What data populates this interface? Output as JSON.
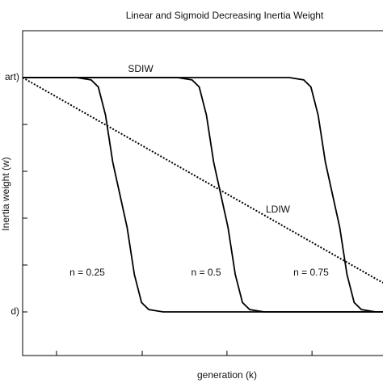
{
  "chart_data": {
    "type": "line",
    "title": "Linear and Sigmoid Decreasing Inertia Weight",
    "xlabel": "generation (k)",
    "ylabel": "Inertia weight (w)",
    "xlim": [
      0,
      100
    ],
    "ylim": [
      0,
      7
    ],
    "xticks": [
      {
        "value": 9.4,
        "label": null
      },
      {
        "value": 33.2,
        "label": null
      },
      {
        "value": 56.7,
        "label": null
      },
      {
        "value": 80.3,
        "label": null
      }
    ],
    "yticks": [
      {
        "value": 1,
        "label": "d)"
      },
      {
        "value": 2,
        "label": null
      },
      {
        "value": 3,
        "label": null
      },
      {
        "value": 4,
        "label": null
      },
      {
        "value": 5,
        "label": null
      },
      {
        "value": 6,
        "label": "art)"
      }
    ],
    "series": [
      {
        "color": "#000000",
        "style": "solid",
        "x": [
          0,
          15,
          19,
          21,
          23,
          25,
          27,
          29,
          31,
          33,
          35,
          39,
          100
        ],
        "values": [
          6,
          6,
          5.95,
          5.8,
          5.2,
          4.2,
          3.5,
          2.8,
          1.8,
          1.2,
          1.05,
          1,
          1
        ]
      },
      {
        "color": "#000000",
        "style": "solid",
        "x": [
          0,
          43,
          47,
          49,
          51,
          53,
          55,
          57,
          59,
          61,
          63,
          67,
          100
        ],
        "values": [
          6,
          6,
          5.95,
          5.8,
          5.2,
          4.2,
          3.5,
          2.8,
          1.8,
          1.2,
          1.05,
          1,
          1
        ]
      },
      {
        "color": "#000000",
        "style": "solid",
        "x": [
          0,
          74,
          78,
          80,
          82,
          84,
          86,
          88,
          90,
          92,
          94,
          98,
          100
        ],
        "values": [
          6,
          6,
          5.95,
          5.8,
          5.2,
          4.2,
          3.5,
          2.8,
          1.8,
          1.2,
          1.05,
          1,
          1
        ]
      },
      {
        "color": "#000000",
        "style": "dotted",
        "x": [
          0,
          100
        ],
        "values": [
          6,
          1.62
        ]
      }
    ],
    "annotations": [
      "SDIW",
      "LDIW",
      "n = 0.25",
      "n = 0.5",
      "n = 0.75"
    ]
  }
}
